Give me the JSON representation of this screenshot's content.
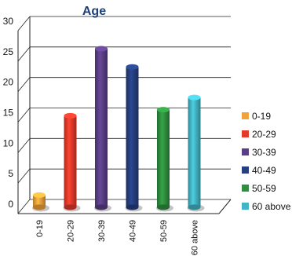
{
  "chart_data": {
    "type": "bar",
    "title": "Age",
    "categories": [
      "0-19",
      "20-29",
      "30-39",
      "40-49",
      "50-59",
      "60 above"
    ],
    "values": [
      2,
      15,
      26,
      23,
      16,
      18
    ],
    "ylim": [
      0,
      30
    ],
    "yticks": [
      0,
      5,
      10,
      15,
      20,
      25,
      30
    ],
    "grid": true,
    "legend_position": "right",
    "colors": [
      "#f2a23a",
      "#e23a2b",
      "#5a3f86",
      "#253f7f",
      "#2f8f3f",
      "#43b4c4"
    ],
    "legend": [
      "0-19",
      "20-29",
      "30-39",
      "40-49",
      "50-59",
      "60 above"
    ]
  }
}
